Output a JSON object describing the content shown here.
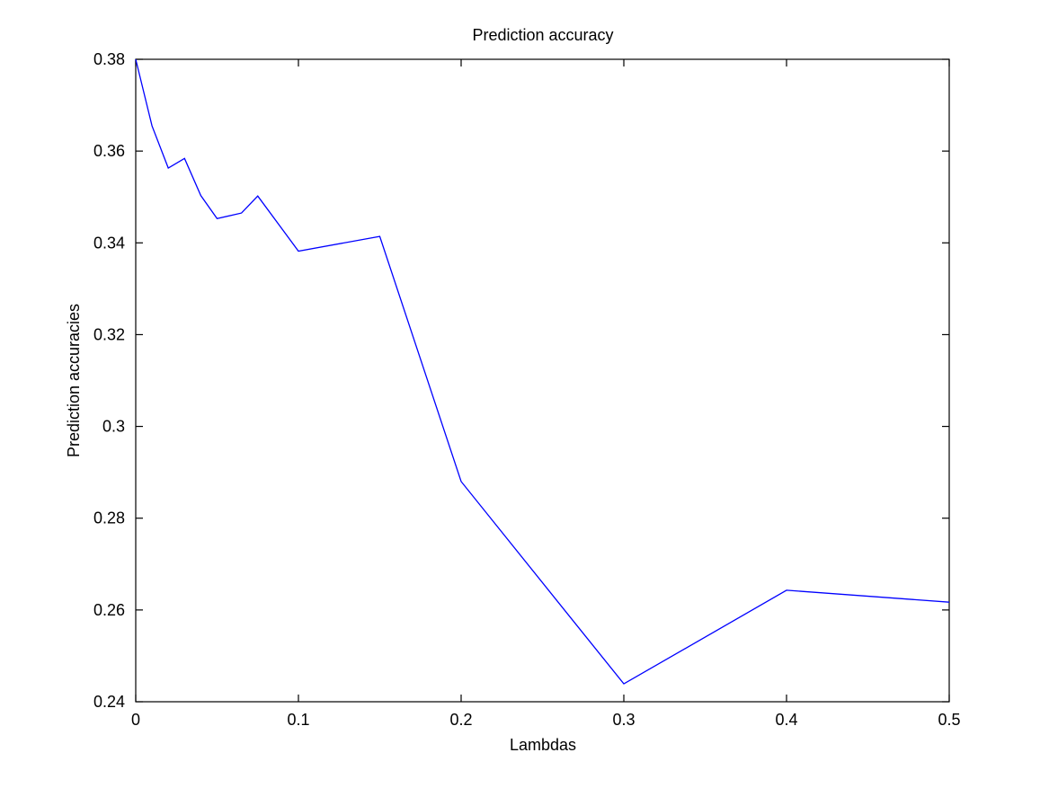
{
  "chart_data": {
    "type": "line",
    "title": "Prediction accuracy",
    "xlabel": "Lambdas",
    "ylabel": "Prediction accuracies",
    "xlim": [
      0,
      0.5
    ],
    "ylim": [
      0.24,
      0.38
    ],
    "xticks": [
      0,
      0.1,
      0.2,
      0.3,
      0.4,
      0.5
    ],
    "xtick_labels": [
      "0",
      "0.1",
      "0.2",
      "0.3",
      "0.4",
      "0.5"
    ],
    "yticks": [
      0.24,
      0.26,
      0.28,
      0.3,
      0.32,
      0.34,
      0.36,
      0.38
    ],
    "ytick_labels": [
      "0.24",
      "0.26",
      "0.28",
      "0.3",
      "0.32",
      "0.34",
      "0.36",
      "0.38"
    ],
    "grid": false,
    "legend": "none",
    "series": [
      {
        "color": "#0000ff",
        "x": [
          0,
          0.01,
          0.02,
          0.03,
          0.04,
          0.05,
          0.065,
          0.075,
          0.1,
          0.15,
          0.2,
          0.3,
          0.4,
          0.5
        ],
        "y": [
          0.38,
          0.3655,
          0.3563,
          0.3584,
          0.3503,
          0.3453,
          0.3465,
          0.3502,
          0.3382,
          0.3414,
          0.288,
          0.2439,
          0.2643,
          0.2617
        ]
      }
    ]
  }
}
